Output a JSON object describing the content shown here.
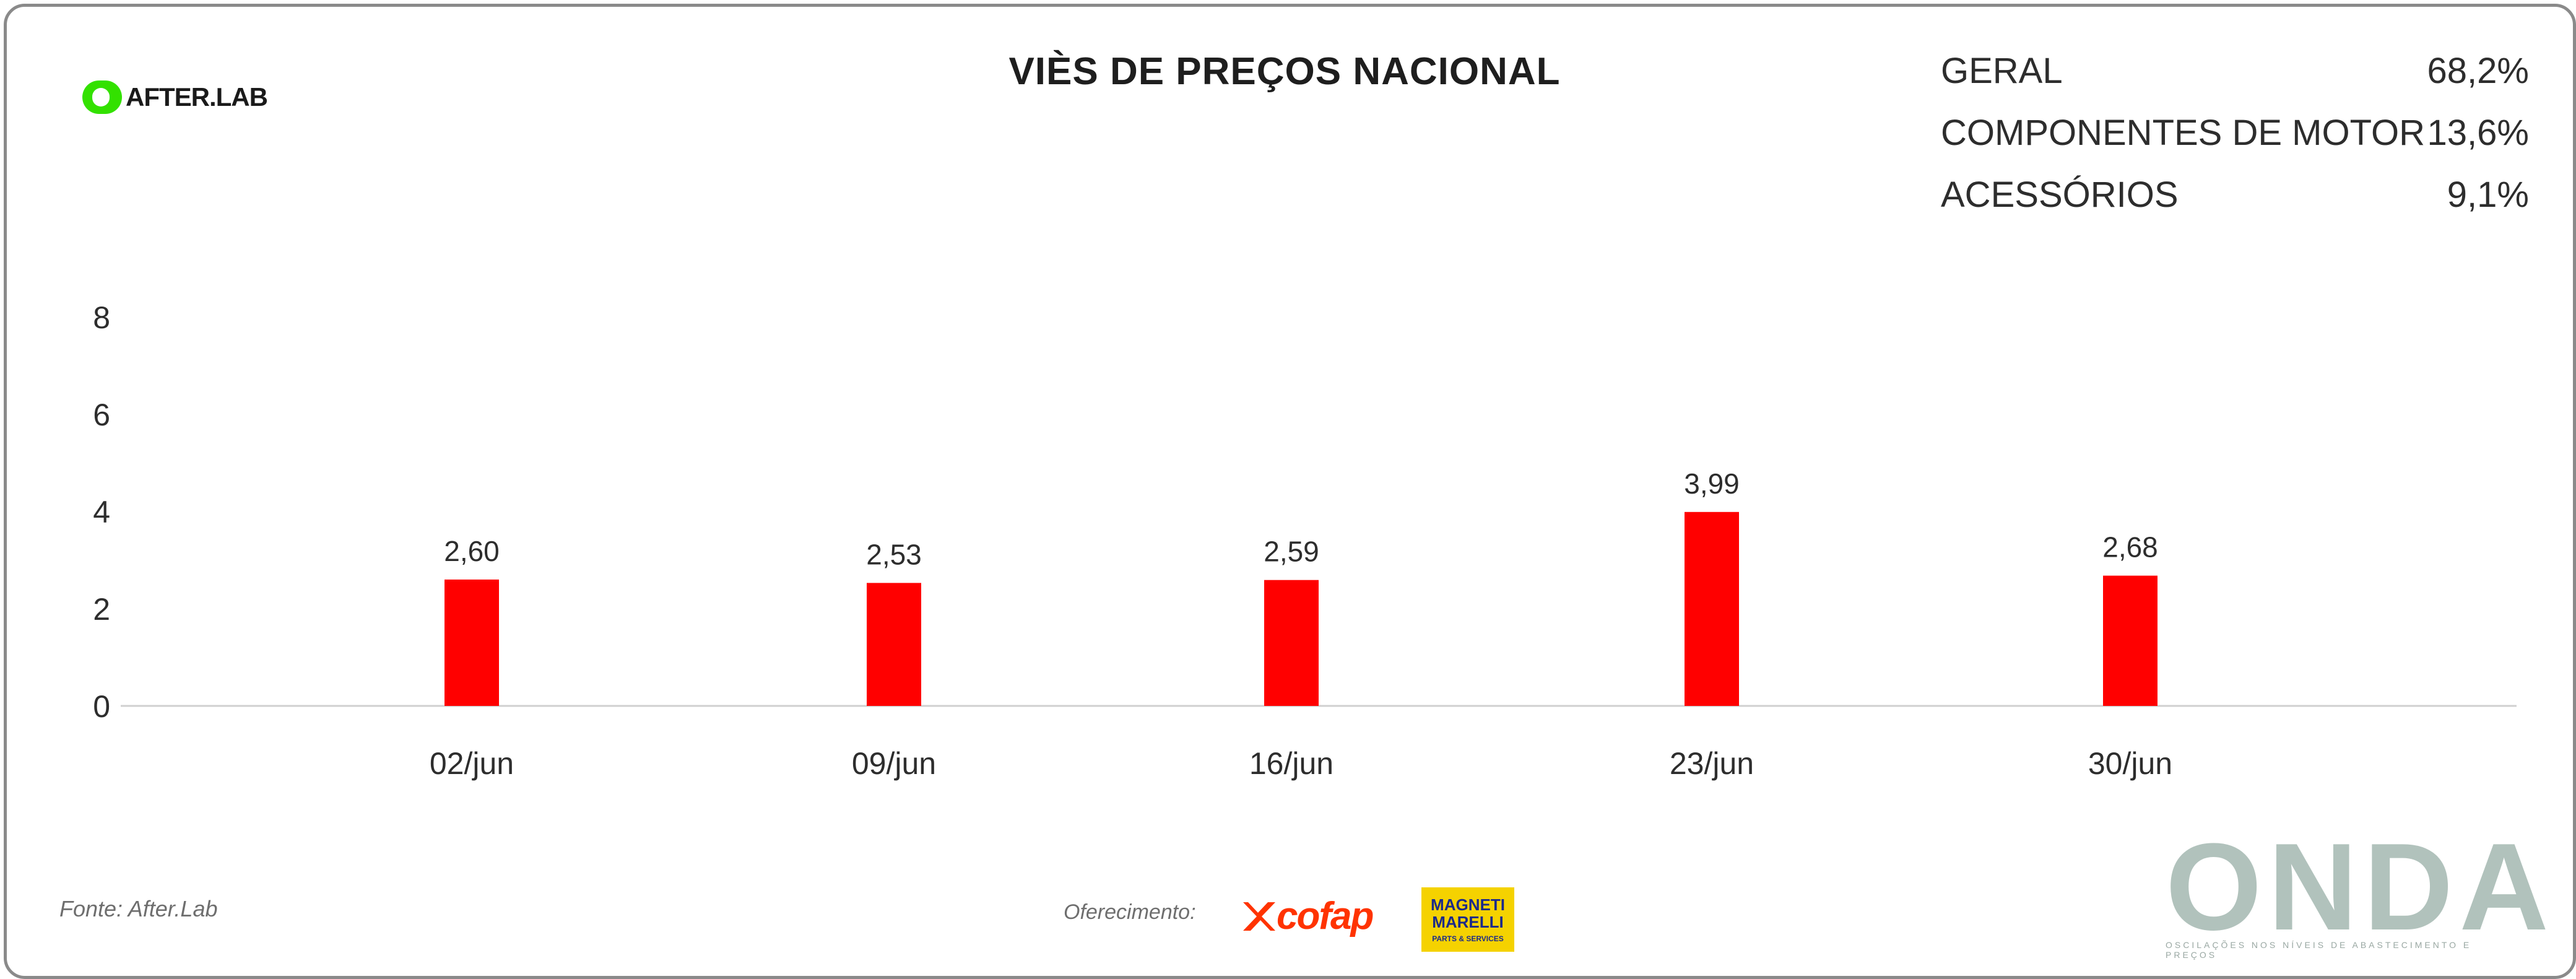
{
  "header": {
    "logo_text": "AFTER.LAB",
    "title": "VIÈS DE PREÇOS NACIONAL"
  },
  "summary": [
    {
      "label": "GERAL",
      "value": "68,2%"
    },
    {
      "label": "COMPONENTES DE MOTOR",
      "value": "13,6%"
    },
    {
      "label": "ACESSÓRIOS",
      "value": "9,1%"
    }
  ],
  "chart_data": {
    "type": "bar",
    "title": "VIÈS DE PREÇOS NACIONAL",
    "categories": [
      "02/jun",
      "09/jun",
      "16/jun",
      "23/jun",
      "30/jun"
    ],
    "values": [
      2.6,
      2.53,
      2.59,
      3.99,
      2.68
    ],
    "value_labels": [
      "2,60",
      "2,53",
      "2,59",
      "3,99",
      "2,68"
    ],
    "y_ticks": [
      0,
      2,
      4,
      6,
      8
    ],
    "ylim": [
      0,
      8
    ],
    "xlabel": "",
    "ylabel": "",
    "bar_color": "#ff0000",
    "grid": false,
    "legend": "none"
  },
  "footer": {
    "source": "Fonte: After.Lab",
    "sponsor_label": "Oferecimento:",
    "cofap_logo": "cofap",
    "magneti_logo": "MAGNETI MARELLI",
    "magneti_sub": "PARTS & SERVICES",
    "onda_logo": "ONDA",
    "onda_tagline": "OSCILAÇÕES NOS NÍVEIS DE ABASTECIMENTO E PREÇOS"
  },
  "colors": {
    "bar": "#ff0000",
    "afterlab_green": "#33e100",
    "cofap": "#ff3300",
    "magneti_bg": "#f5d200",
    "onda": "#b1c2bc"
  }
}
